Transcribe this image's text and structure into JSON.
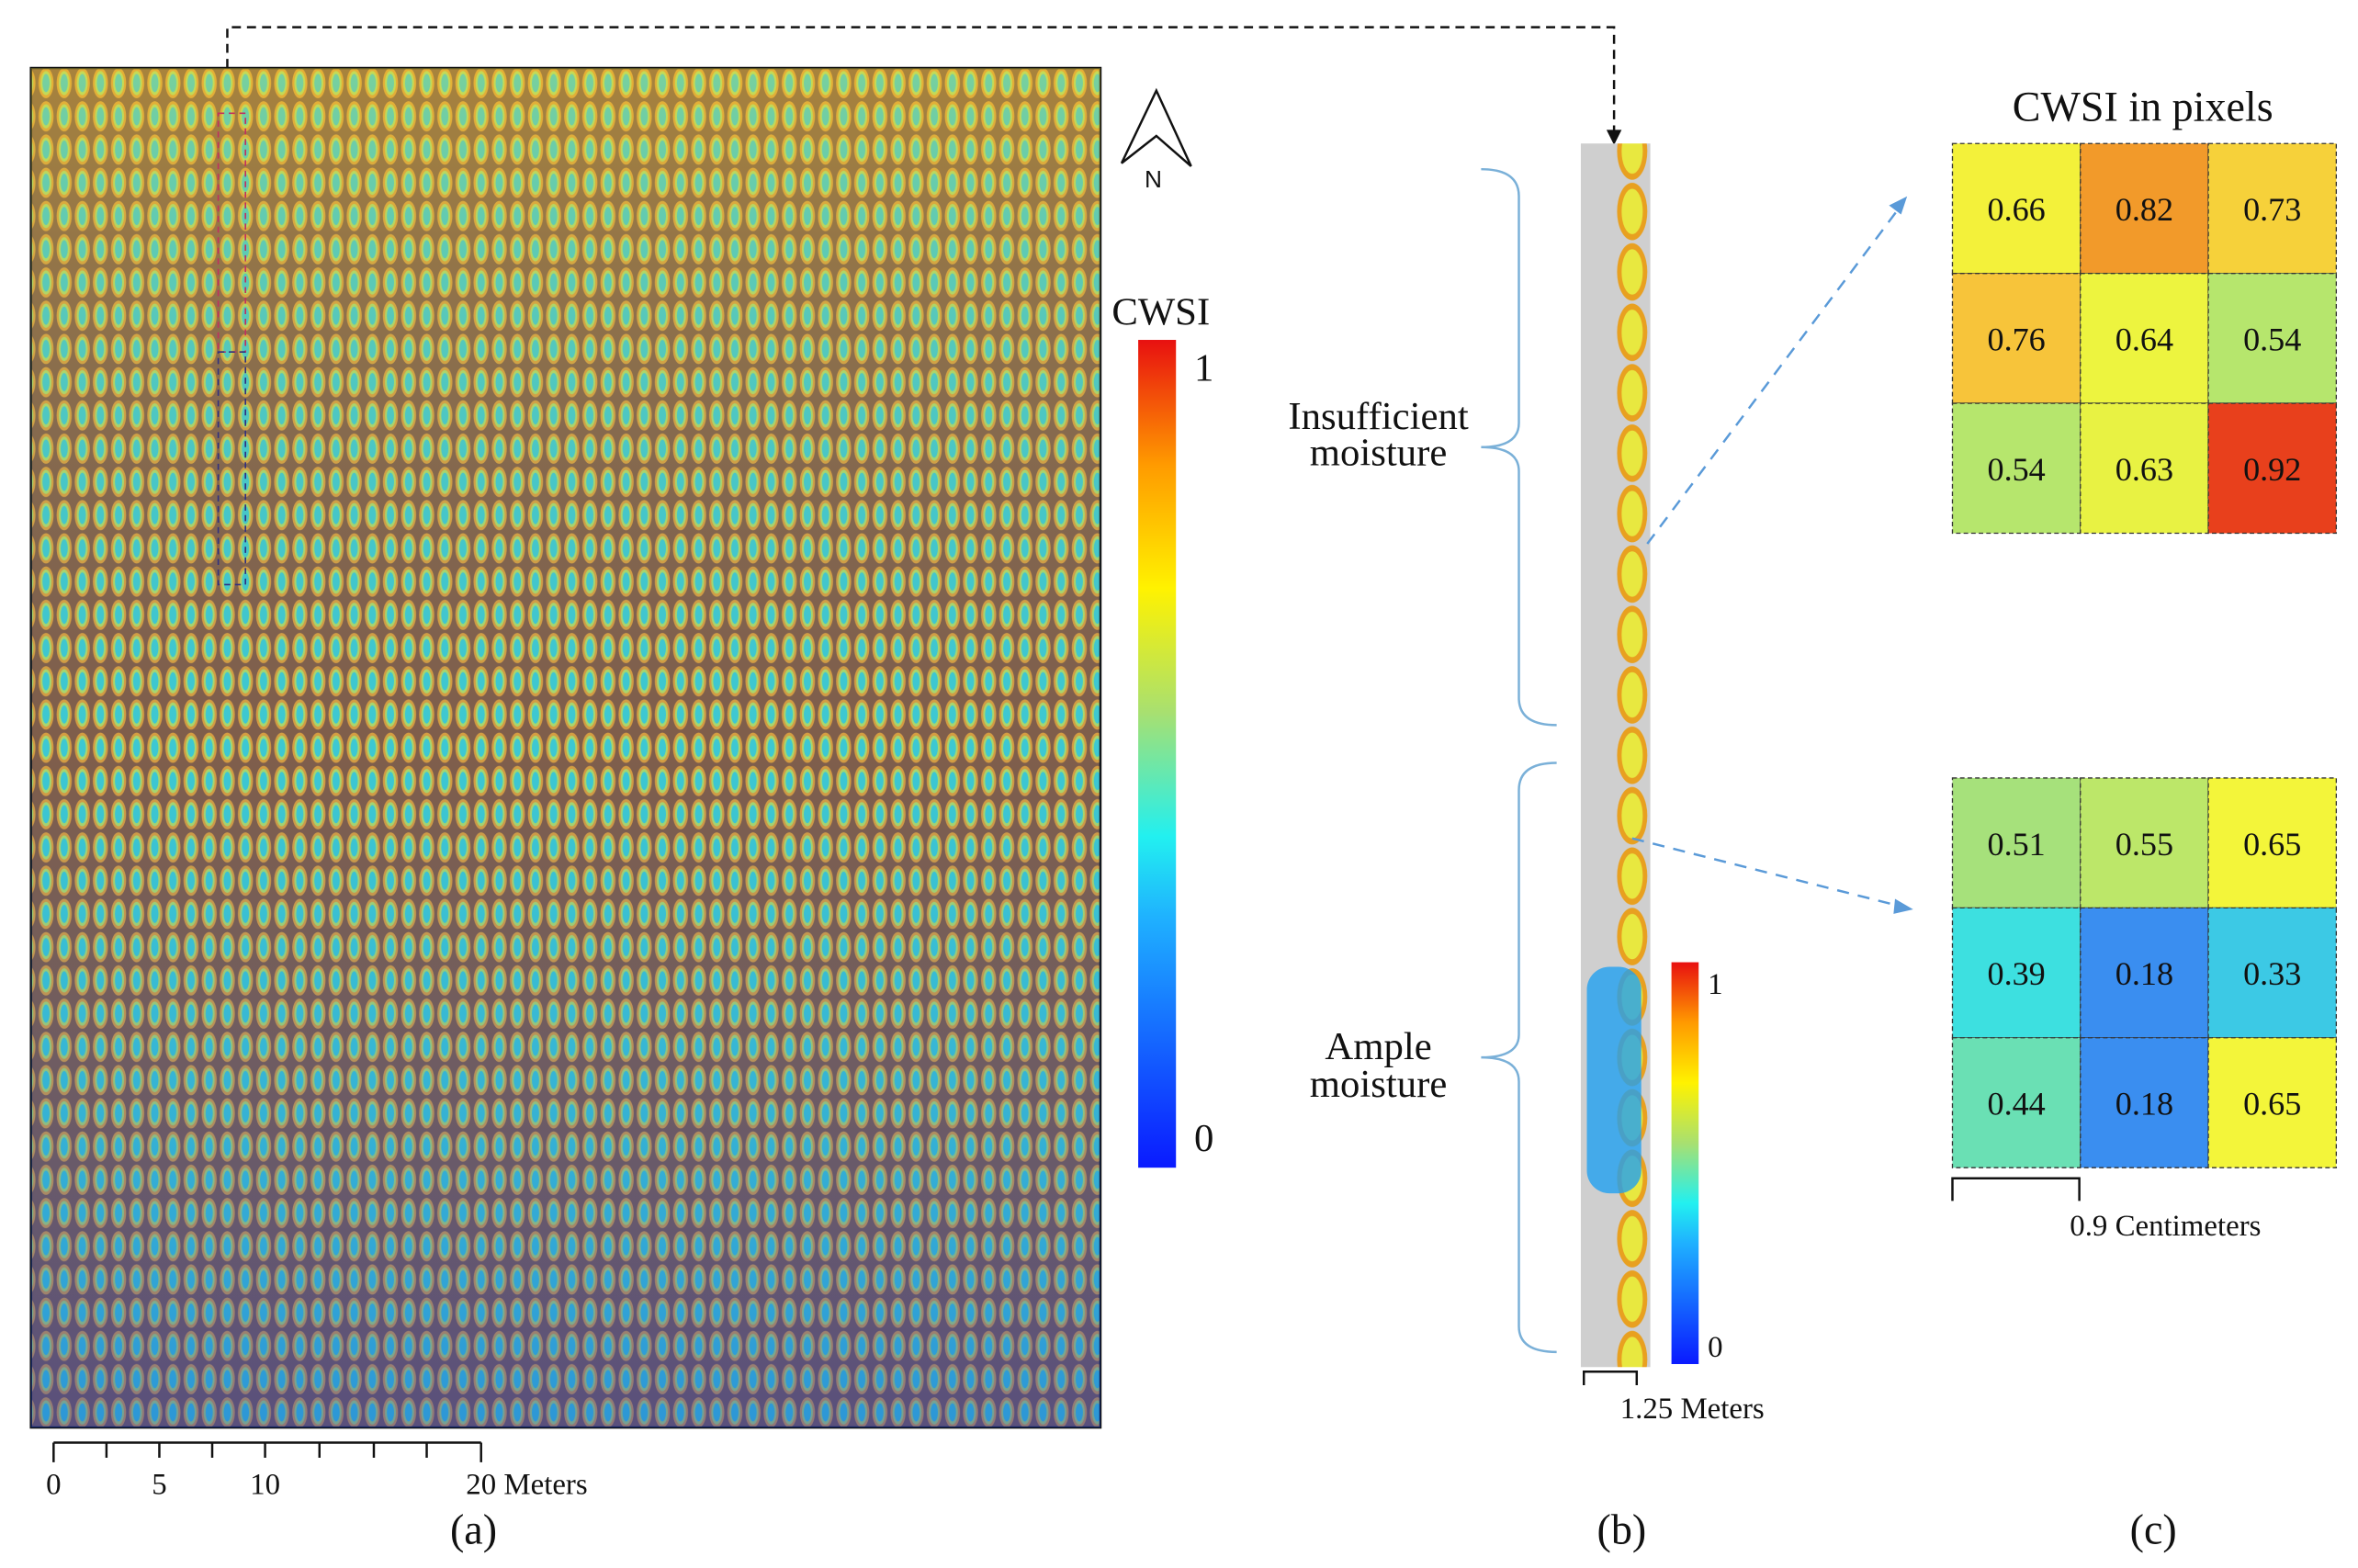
{
  "panel_a": {
    "legend_title": "CWSI",
    "legend_max": "1",
    "legend_min": "0",
    "north": "N",
    "scale_labels": [
      "0",
      "5",
      "10",
      "20 Meters"
    ],
    "caption": "(a)"
  },
  "panel_b": {
    "upper_label": [
      "Insufficient",
      "moisture"
    ],
    "lower_label": [
      "Ample",
      "moisture"
    ],
    "legend_max": "1",
    "legend_min": "0",
    "scale_label": "1.25 Meters",
    "caption": "(b)"
  },
  "panel_c": {
    "title": "CWSI in pixels",
    "grids": [
      [
        [
          0.66,
          0.82,
          0.73
        ],
        [
          0.76,
          0.64,
          0.54
        ],
        [
          0.54,
          0.63,
          0.92
        ]
      ],
      [
        [
          0.51,
          0.55,
          0.65
        ],
        [
          0.39,
          0.18,
          0.33
        ],
        [
          0.44,
          0.18,
          0.65
        ]
      ]
    ],
    "scale_label": "0.9 Centimeters",
    "caption": "(c)"
  }
}
